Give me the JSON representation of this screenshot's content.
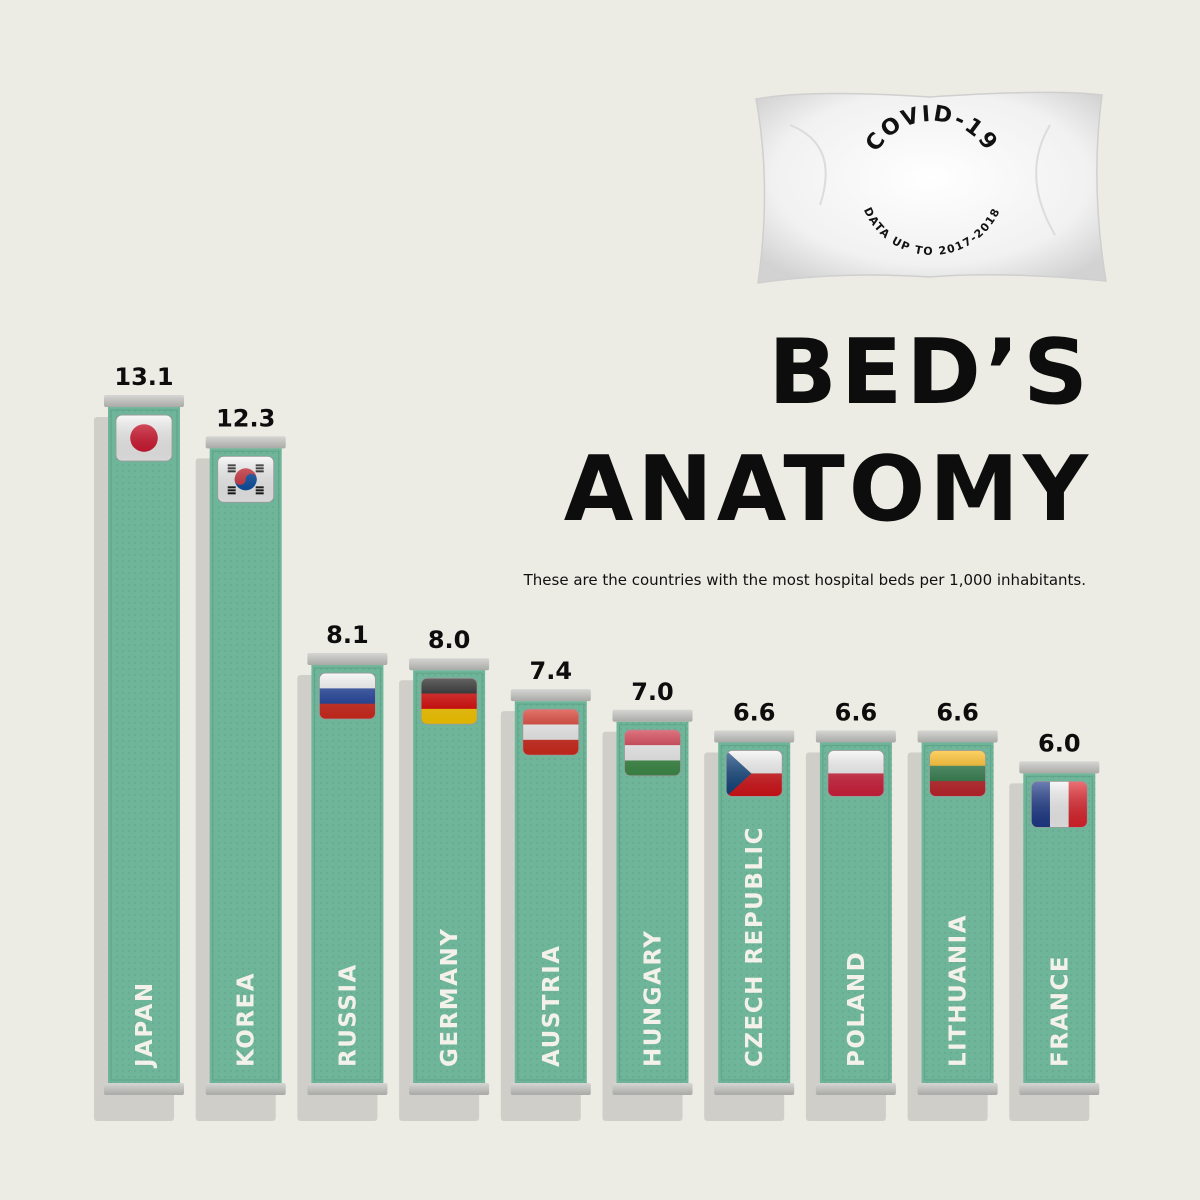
{
  "pillow": {
    "top_text": "COVID-19",
    "bottom_text": "DATA UP TO 2017-2018"
  },
  "header": {
    "title_line1": "BED’S",
    "title_line2": "ANATOMY",
    "subtitle": "These are the countries with the most hospital beds per 1,000 inhabitants."
  },
  "colors": {
    "background": "#ecebe4",
    "mattress": "#6fb59a",
    "frame": "#b9b9b6",
    "text": "#0d0d0d"
  },
  "chart_data": {
    "type": "bar",
    "title": "BED’S ANATOMY",
    "subtitle": "These are the countries with the most hospital beds per 1,000 inhabitants.",
    "unit": "",
    "categories": [
      "JAPAN",
      "KOREA",
      "RUSSIA",
      "GERMANY",
      "AUSTRIA",
      "HUNGARY",
      "CZECH REPUBLIC",
      "POLAND",
      "LITHUANIA",
      "FRANCE"
    ],
    "value_labels": [
      "13.1",
      "12.3",
      "8.1",
      "8.0",
      "7.4",
      "7.0",
      "6.6",
      "6.6",
      "6.6",
      "6.0"
    ],
    "values": [
      13.1,
      12.3,
      8.1,
      8.0,
      7.4,
      7.0,
      6.6,
      6.6,
      6.6,
      6.0
    ],
    "flags": [
      "japan-flag-icon",
      "korea-flag-icon",
      "russia-flag-icon",
      "germany-flag-icon",
      "austria-flag-icon",
      "hungary-flag-icon",
      "czech-flag-icon",
      "poland-flag-icon",
      "lithuania-flag-icon",
      "france-flag-icon"
    ],
    "grid": false,
    "legend": "none"
  }
}
